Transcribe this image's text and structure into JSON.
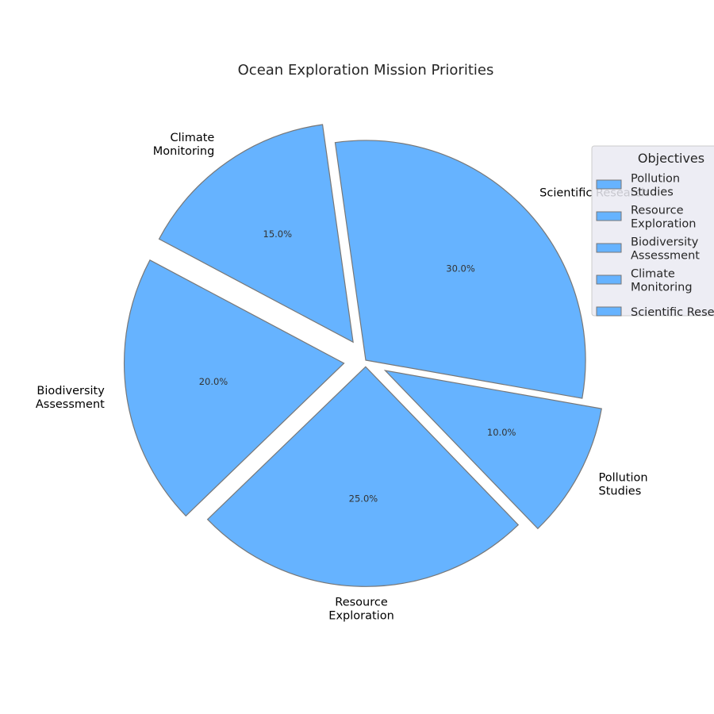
{
  "chart_data": {
    "type": "pie",
    "title": "Ocean Exploration Mission Priorities",
    "slices": [
      {
        "label": "Scientific Research",
        "value": 30,
        "pct_text": "30.0%"
      },
      {
        "label": "Climate\nMonitoring",
        "value": 15,
        "pct_text": "15.0%"
      },
      {
        "label": "Biodiversity\nAssessment",
        "value": 20,
        "pct_text": "20.0%"
      },
      {
        "label": "Resource\nExploration",
        "value": 25,
        "pct_text": "25.0%"
      },
      {
        "label": "Pollution\nStudies",
        "value": 10,
        "pct_text": "10.0%"
      }
    ],
    "slice_color": "#66b3ff",
    "edge_color": "#777777",
    "legend": {
      "title": "Objectives",
      "placement": "right",
      "entries": [
        "Pollution\nStudies",
        "Resource\nExploration",
        "Biodiversity\nAssessment",
        "Climate\nMonitoring",
        "Scientific Research"
      ]
    }
  }
}
